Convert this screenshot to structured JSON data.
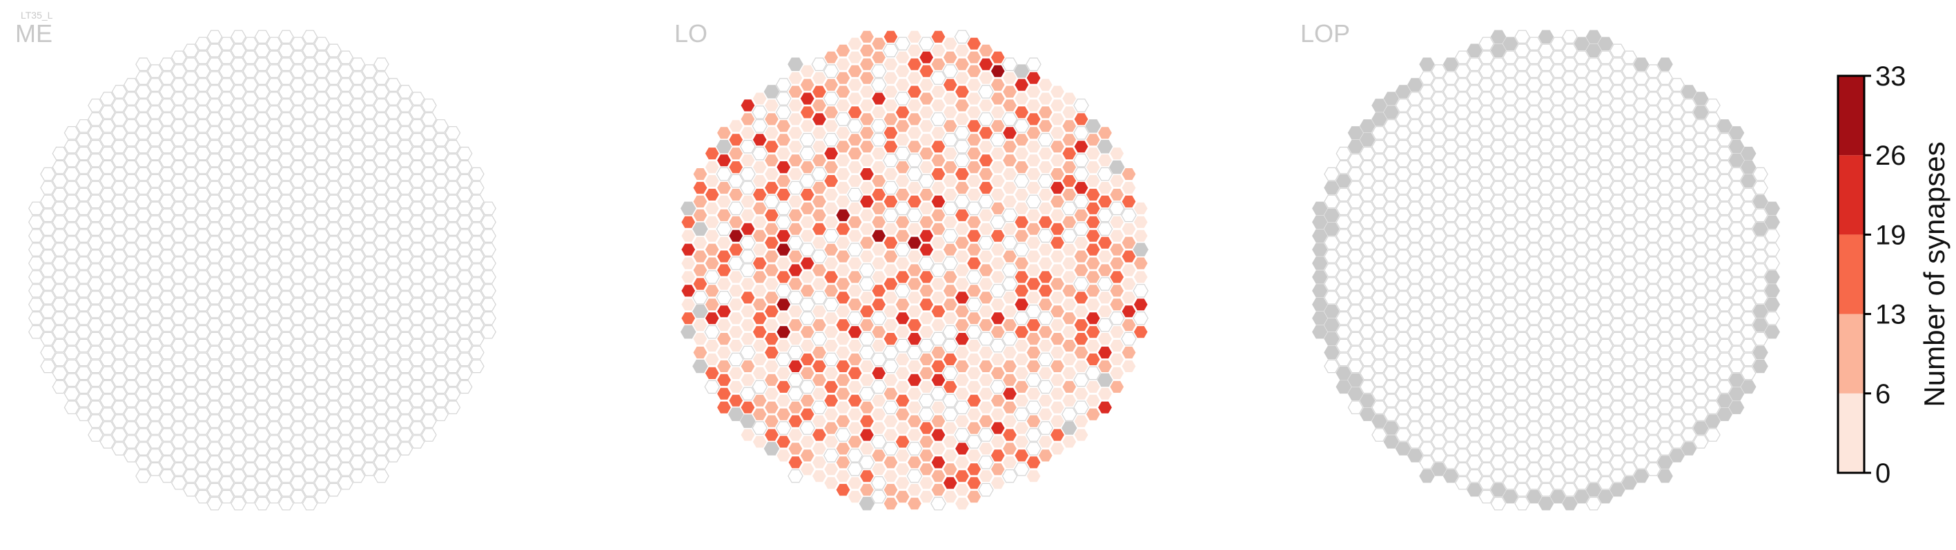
{
  "figure": {
    "cell_type": "LT35_L",
    "colors": {
      "hex_outline": "#d4d4d4",
      "hex_empty_fill": "#ffffff",
      "hex_nodata_fill": "#c9c9c9",
      "panel_label": "#c8c8c8"
    }
  },
  "chart_data": {
    "type": "heatmap",
    "layout": "hexagonal columnar grid, three panels side by side",
    "panels": [
      {
        "label": "ME",
        "summary": "all columns present, all outlined with no fill (0 synapses)",
        "gray_columns": 0
      },
      {
        "label": "LO",
        "summary": "most columns filled light to medium red; scattered gray columns on the rim",
        "value_mix": {
          "0-6": 0.38,
          "6-13": 0.22,
          "13-19": 0.14,
          "19-26": 0.05,
          "26-33": 0.01,
          "empty": 0.2
        },
        "gray_columns": 22
      },
      {
        "label": "LOP",
        "summary": "all interior columns empty outlines; a ring of gray columns around the border",
        "gray_columns": 80
      }
    ],
    "colorbar": {
      "title": "Number of synapses",
      "ticks": [
        "0",
        "6",
        "13",
        "19",
        "26",
        "33"
      ],
      "range": [
        0,
        33
      ],
      "colors": [
        "#fde6dc",
        "#fbb49a",
        "#f7694a",
        "#db2c24",
        "#a30f15"
      ],
      "position": "right"
    }
  }
}
